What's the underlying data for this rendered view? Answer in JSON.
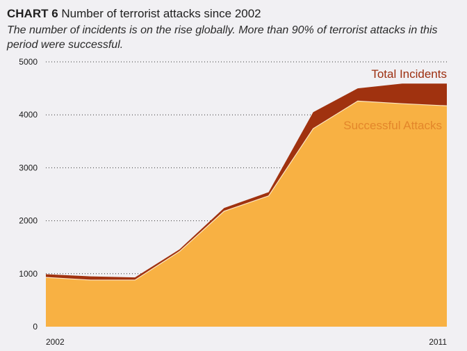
{
  "header": {
    "tag": "CHART 6",
    "title": "Number of terrorist attacks since 2002",
    "subtitle": "The number of incidents is on the rise globally. More than 90% of terrorist attacks in this period were successful."
  },
  "colors": {
    "background": "#f1f0f3",
    "total": "#a0320f",
    "successful": "#f8b143",
    "total_label": "#9c2e0f",
    "successful_label": "#e3862a",
    "grid": "#333333"
  },
  "chart_data": {
    "type": "area",
    "x": [
      2002,
      2003,
      2004,
      2005,
      2006,
      2007,
      2008,
      2009,
      2010,
      2011
    ],
    "x_tick_labels": [
      "2002",
      "2011"
    ],
    "series": [
      {
        "name": "Total Incidents",
        "values": [
          990,
          950,
          930,
          1460,
          2240,
          2540,
          4050,
          4500,
          4590,
          4590
        ]
      },
      {
        "name": "Successful Attacks",
        "values": [
          930,
          880,
          880,
          1420,
          2180,
          2470,
          3740,
          4260,
          4210,
          4170
        ]
      }
    ],
    "ylim": [
      0,
      5000
    ],
    "y_ticks": [
      0,
      1000,
      2000,
      3000,
      4000,
      5000
    ],
    "grid": true,
    "stacked": false
  }
}
